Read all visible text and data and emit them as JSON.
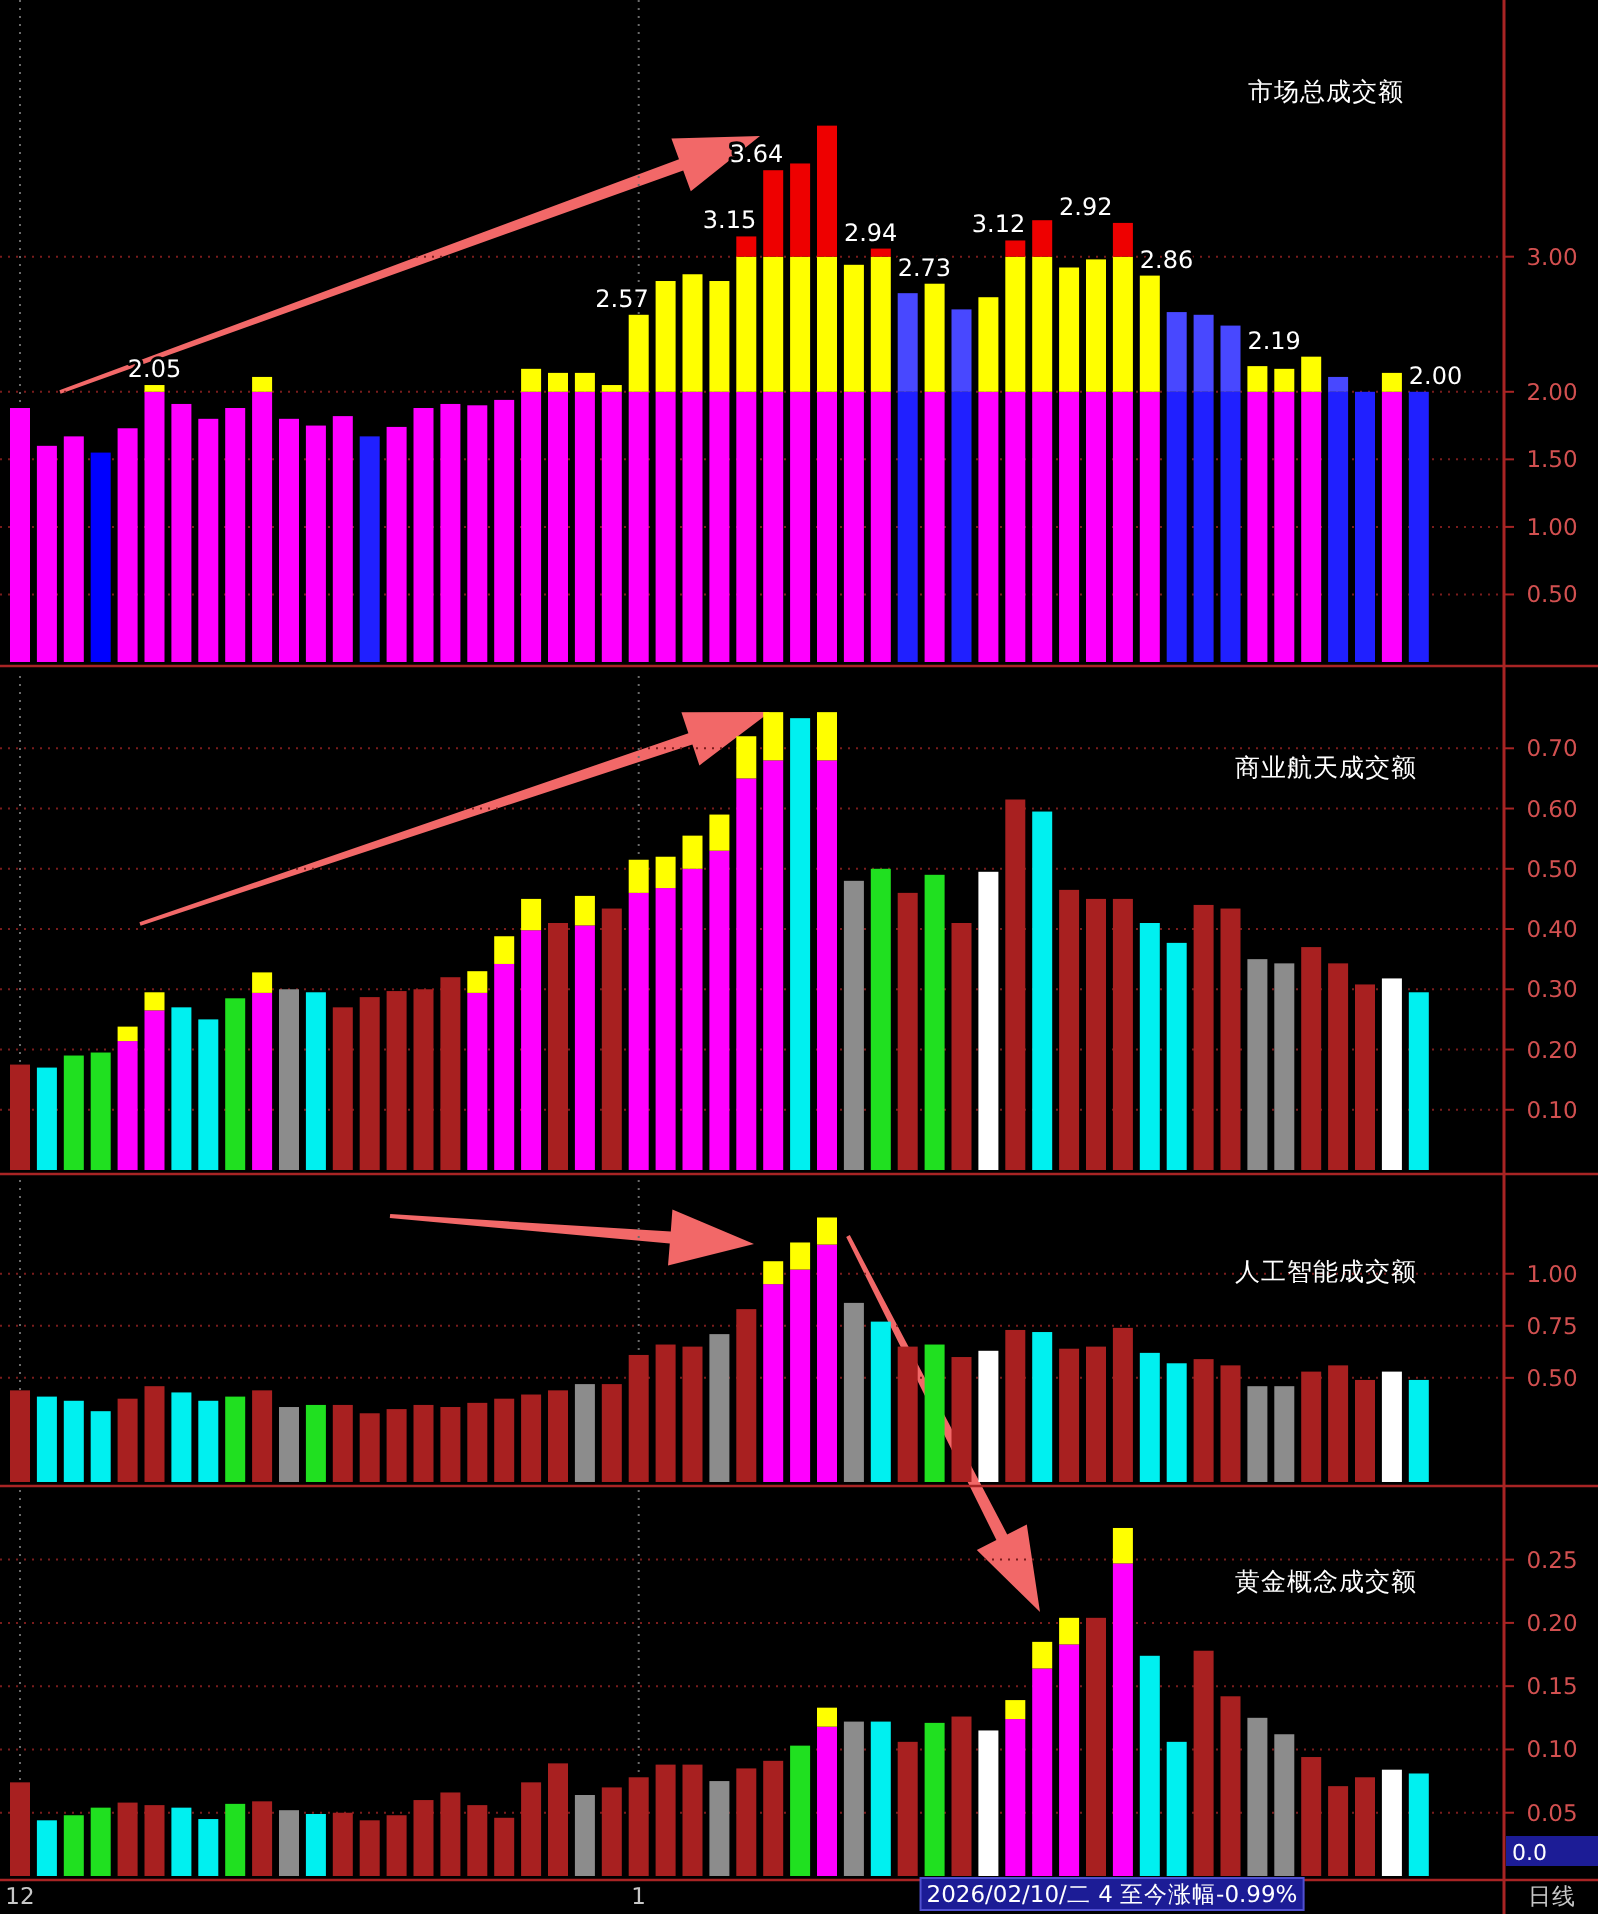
{
  "chart_data": [
    {
      "type": "bar",
      "title": "市场总成交额",
      "stacked": true,
      "grid": true,
      "tick_labels": "y",
      "categories": [
        "12",
        null,
        null,
        null,
        null,
        null,
        null,
        null,
        null,
        null,
        null,
        null,
        null,
        null,
        null,
        null,
        null,
        null,
        null,
        null,
        null,
        null,
        null,
        "1",
        null,
        null,
        null,
        null,
        null,
        null,
        null,
        null,
        null,
        null,
        null,
        null,
        null,
        null,
        null,
        null,
        null,
        null,
        null,
        null,
        null,
        null,
        null,
        null,
        null,
        null,
        null,
        null,
        null
      ],
      "ylim": [
        0,
        4.9
      ],
      "yticks": [
        {
          "value": 0.5,
          "label": "0.50"
        },
        {
          "value": 1,
          "label": "1.00"
        },
        {
          "value": 1.5,
          "label": "1.50"
        },
        {
          "value": 2,
          "label": "2.00"
        },
        {
          "value": 3,
          "label": "3.00"
        }
      ],
      "series": [
        {
          "colors": [
            "#ff00ff",
            "#ff00ff",
            "#ff00ff",
            "#0000ff",
            "#ff00ff",
            "#ff00ff",
            "#ff00ff",
            "#ff00ff",
            "#ff00ff",
            "#ff00ff",
            "#ff00ff",
            "#ff00ff",
            "#ff00ff",
            "#2020ff",
            "#ff00ff",
            "#ff00ff",
            "#ff00ff",
            "#ff00ff",
            "#ff00ff",
            "#ff00ff",
            "#ff00ff",
            "#ff00ff",
            "#ff00ff",
            "#ff00ff",
            "#ff00ff",
            "#ff00ff",
            "#ff00ff",
            "#ff00ff",
            "#ff00ff",
            "#ff00ff",
            "#ff00ff",
            "#ff00ff",
            "#ff00ff",
            "#2020ff",
            "#ff00ff",
            "#2020ff",
            "#ff00ff",
            "#ff00ff",
            "#ff00ff",
            "#ff00ff",
            "#ff00ff",
            "#ff00ff",
            "#ff00ff",
            "#2020ff",
            "#2020ff",
            "#2020ff",
            "#ff00ff",
            "#ff00ff",
            "#ff00ff",
            "#2020ff",
            "#2020ff",
            "#ff00ff",
            "#2020ff"
          ],
          "values": [
            1.88,
            1.6,
            1.67,
            1.55,
            1.73,
            2,
            1.91,
            1.8,
            1.88,
            2,
            1.8,
            1.75,
            1.82,
            1.67,
            1.74,
            1.88,
            1.91,
            1.9,
            1.94,
            2,
            2,
            2,
            2,
            2,
            2,
            2,
            2,
            2,
            2,
            2,
            2,
            2,
            2,
            2,
            2,
            2,
            2,
            2,
            2,
            2,
            2,
            2,
            2,
            2,
            2,
            2,
            2,
            2,
            2,
            2,
            2,
            2,
            2
          ]
        },
        {
          "colors": [
            null,
            null,
            null,
            null,
            null,
            "#ffff00",
            null,
            null,
            null,
            "#ffff00",
            null,
            null,
            null,
            null,
            null,
            null,
            null,
            null,
            null,
            "#ffff00",
            "#ffff00",
            "#ffff00",
            "#ffff00",
            "#ffff00",
            "#ffff00",
            "#ffff00",
            "#ffff00",
            "#ffff00",
            "#ffff00",
            "#ffff00",
            "#ffff00",
            "#ffff00",
            "#ffff00",
            "#4848ff",
            "#ffff00",
            "#4848ff",
            "#ffff00",
            "#ffff00",
            "#ffff00",
            "#ffff00",
            "#ffff00",
            "#ffff00",
            "#ffff00",
            "#4848ff",
            "#4848ff",
            "#4848ff",
            "#ffff00",
            "#ffff00",
            "#ffff00",
            "#4848ff",
            null,
            "#ffff00",
            null
          ],
          "values": [
            null,
            null,
            null,
            null,
            null,
            0.05,
            null,
            null,
            null,
            0.11,
            null,
            null,
            null,
            null,
            null,
            null,
            null,
            null,
            null,
            0.17,
            0.14,
            0.14,
            0.05,
            0.57,
            0.82,
            0.87,
            0.82,
            1,
            1,
            1,
            1,
            0.94,
            1,
            0.73,
            0.8,
            0.61,
            0.7,
            1,
            1,
            0.92,
            0.98,
            1,
            0.86,
            0.59,
            0.57,
            0.49,
            0.19,
            0.17,
            0.26,
            0.11,
            null,
            0.14,
            null
          ]
        },
        {
          "color": "#ee0000",
          "values": [
            null,
            null,
            null,
            null,
            null,
            null,
            null,
            null,
            null,
            null,
            null,
            null,
            null,
            null,
            null,
            null,
            null,
            null,
            null,
            null,
            null,
            null,
            null,
            null,
            null,
            null,
            null,
            0.15,
            0.64,
            0.69,
            0.97,
            null,
            0.06,
            null,
            null,
            null,
            null,
            0.12,
            0.27,
            null,
            null,
            0.25,
            null,
            null,
            null,
            null,
            null,
            null,
            null,
            null,
            null,
            null,
            null
          ]
        }
      ],
      "totals": [
        null,
        null,
        null,
        null,
        null,
        "2.05",
        null,
        null,
        null,
        null,
        null,
        null,
        null,
        null,
        null,
        null,
        null,
        null,
        null,
        null,
        null,
        null,
        null,
        "2.57",
        null,
        null,
        null,
        "3.15",
        "3.64",
        null,
        null,
        "2.94",
        null,
        "2.73",
        null,
        null,
        null,
        "3.12",
        null,
        "2.92",
        null,
        null,
        "2.86",
        null,
        null,
        null,
        "2.19",
        null,
        null,
        null,
        null,
        null,
        "2.00"
      ]
    },
    {
      "type": "bar",
      "title": "商业航天成交额",
      "stacked": true,
      "grid": true,
      "tick_labels": "y",
      "categories": [
        "12",
        null,
        null,
        null,
        null,
        null,
        null,
        null,
        null,
        null,
        null,
        null,
        null,
        null,
        null,
        null,
        null,
        null,
        null,
        null,
        null,
        null,
        null,
        "1",
        null,
        null,
        null,
        null,
        null,
        null,
        null,
        null,
        null,
        null,
        null,
        null,
        null,
        null,
        null,
        null,
        null,
        null,
        null,
        null,
        null,
        null,
        null,
        null,
        null,
        null,
        null,
        null,
        null
      ],
      "ylim": [
        0,
        0.82
      ],
      "yticks": [
        {
          "value": 0.1,
          "label": "0.10"
        },
        {
          "value": 0.2,
          "label": "0.20"
        },
        {
          "value": 0.3,
          "label": "0.30"
        },
        {
          "value": 0.4,
          "label": "0.40"
        },
        {
          "value": 0.5,
          "label": "0.50"
        },
        {
          "value": 0.6,
          "label": "0.60"
        },
        {
          "value": 0.7,
          "label": "0.70"
        }
      ],
      "series": [
        {
          "colors": [
            "#a82020",
            "#00f0f0",
            "#20e020",
            "#20e020",
            "#ff00ff",
            "#ff00ff",
            "#00f0f0",
            "#00f0f0",
            "#20e020",
            "#ff00ff",
            "#8c8c8c",
            "#00f0f0",
            "#a82020",
            "#a82020",
            "#a82020",
            "#a82020",
            "#a82020",
            "#ff00ff",
            "#ff00ff",
            "#ff00ff",
            "#a82020",
            "#ff00ff",
            "#a82020",
            "#ff00ff",
            "#ff00ff",
            "#ff00ff",
            "#ff00ff",
            "#ff00ff",
            "#ff00ff",
            "#00f0f0",
            "#ff00ff",
            "#8c8c8c",
            "#20e020",
            "#a82020",
            "#20e020",
            "#a82020",
            "#ffffff",
            "#a82020",
            "#00f0f0",
            "#a82020",
            "#a82020",
            "#a82020",
            "#00f0f0",
            "#00f0f0",
            "#a82020",
            "#a82020",
            "#8c8c8c",
            "#8c8c8c",
            "#a82020",
            "#a82020",
            "#a82020",
            "#ffffff",
            "#00f0f0"
          ],
          "values": [
            0.175,
            0.17,
            0.19,
            0.195,
            0.214,
            0.265,
            0.27,
            0.25,
            0.285,
            0.294,
            0.3,
            0.295,
            0.27,
            0.287,
            0.297,
            0.3,
            0.32,
            0.294,
            0.342,
            0.398,
            0.41,
            0.406,
            0.434,
            0.46,
            0.468,
            0.5,
            0.53,
            0.65,
            0.68,
            0.75,
            0.68,
            0.48,
            0.5,
            0.46,
            0.49,
            0.41,
            0.495,
            0.615,
            0.595,
            0.465,
            0.45,
            0.45,
            0.41,
            0.377,
            0.44,
            0.434,
            0.35,
            0.343,
            0.37,
            0.343,
            0.308,
            0.318,
            0.295
          ]
        },
        {
          "color": "#ffff00",
          "values": [
            null,
            null,
            null,
            null,
            0.024,
            0.03,
            null,
            null,
            null,
            0.034,
            null,
            null,
            null,
            null,
            null,
            null,
            null,
            0.036,
            0.046,
            0.052,
            null,
            0.049,
            null,
            0.055,
            0.052,
            0.055,
            0.06,
            0.07,
            0.08,
            null,
            0.08,
            null,
            null,
            null,
            null,
            null,
            null,
            null,
            null,
            null,
            null,
            null,
            null,
            null,
            null,
            null,
            null,
            null,
            null,
            null,
            null,
            null,
            null
          ]
        }
      ]
    },
    {
      "type": "bar",
      "title": "人工智能成交额",
      "stacked": true,
      "grid": true,
      "tick_labels": "y",
      "categories": [
        "12",
        null,
        null,
        null,
        null,
        null,
        null,
        null,
        null,
        null,
        null,
        null,
        null,
        null,
        null,
        null,
        null,
        null,
        null,
        null,
        null,
        null,
        null,
        "1",
        null,
        null,
        null,
        null,
        null,
        null,
        null,
        null,
        null,
        null,
        null,
        null,
        null,
        null,
        null,
        null,
        null,
        null,
        null,
        null,
        null,
        null,
        null,
        null,
        null,
        null,
        null,
        null,
        null
      ],
      "ylim": [
        0,
        1.45
      ],
      "yticks": [
        {
          "value": 0.5,
          "label": "0.50"
        },
        {
          "value": 0.75,
          "label": "0.75"
        },
        {
          "value": 1,
          "label": "1.00"
        }
      ],
      "series": [
        {
          "colors": [
            "#a82020",
            "#00f0f0",
            "#00f0f0",
            "#00f0f0",
            "#a82020",
            "#a82020",
            "#00f0f0",
            "#00f0f0",
            "#20e020",
            "#a82020",
            "#8c8c8c",
            "#20e020",
            "#a82020",
            "#a82020",
            "#a82020",
            "#a82020",
            "#a82020",
            "#a82020",
            "#a82020",
            "#a82020",
            "#a82020",
            "#8c8c8c",
            "#a82020",
            "#a82020",
            "#a82020",
            "#a82020",
            "#8c8c8c",
            "#a82020",
            "#ff00ff",
            "#ff00ff",
            "#ff00ff",
            "#8c8c8c",
            "#00f0f0",
            "#a82020",
            "#20e020",
            "#a82020",
            "#ffffff",
            "#a82020",
            "#00f0f0",
            "#a82020",
            "#a82020",
            "#a82020",
            "#00f0f0",
            "#00f0f0",
            "#a82020",
            "#a82020",
            "#8c8c8c",
            "#8c8c8c",
            "#a82020",
            "#a82020",
            "#a82020",
            "#ffffff",
            "#00f0f0"
          ],
          "values": [
            0.44,
            0.41,
            0.39,
            0.34,
            0.4,
            0.46,
            0.43,
            0.39,
            0.41,
            0.44,
            0.36,
            0.37,
            0.37,
            0.33,
            0.35,
            0.37,
            0.36,
            0.38,
            0.4,
            0.42,
            0.44,
            0.47,
            0.47,
            0.61,
            0.66,
            0.65,
            0.71,
            0.83,
            0.95,
            1.02,
            1.14,
            0.86,
            0.77,
            0.65,
            0.66,
            0.6,
            0.63,
            0.73,
            0.72,
            0.64,
            0.65,
            0.74,
            0.62,
            0.57,
            0.59,
            0.56,
            0.46,
            0.46,
            0.53,
            0.56,
            0.49,
            0.53,
            0.49
          ]
        },
        {
          "color": "#ffff00",
          "values": [
            null,
            null,
            null,
            null,
            null,
            null,
            null,
            null,
            null,
            null,
            null,
            null,
            null,
            null,
            null,
            null,
            null,
            null,
            null,
            null,
            null,
            null,
            null,
            null,
            null,
            null,
            null,
            null,
            0.11,
            0.13,
            0.13,
            null,
            null,
            null,
            null,
            null,
            null,
            null,
            null,
            null,
            null,
            null,
            null,
            null,
            null,
            null,
            null,
            null,
            null,
            null,
            null,
            null,
            null
          ]
        }
      ]
    },
    {
      "type": "bar",
      "title": "黄金概念成交额",
      "stacked": true,
      "grid": true,
      "categories": [
        "12",
        null,
        null,
        null,
        null,
        null,
        null,
        null,
        null,
        null,
        null,
        null,
        null,
        null,
        null,
        null,
        null,
        null,
        null,
        null,
        null,
        null,
        null,
        "1",
        null,
        null,
        null,
        null,
        null,
        null,
        null,
        null,
        null,
        null,
        null,
        null,
        null,
        null,
        null,
        null,
        null,
        null,
        null,
        null,
        null,
        null,
        null,
        null,
        null,
        null,
        null,
        null,
        null
      ],
      "ylim": [
        0,
        0.305
      ],
      "yticks": [
        {
          "value": 0.05,
          "label": "0.05"
        },
        {
          "value": 0.1,
          "label": "0.10"
        },
        {
          "value": 0.15,
          "label": "0.15"
        },
        {
          "value": 0.2,
          "label": "0.20"
        },
        {
          "value": 0.25,
          "label": "0.25"
        }
      ],
      "series": [
        {
          "colors": [
            "#a82020",
            "#00f0f0",
            "#20e020",
            "#20e020",
            "#a82020",
            "#a82020",
            "#00f0f0",
            "#00f0f0",
            "#20e020",
            "#a82020",
            "#8c8c8c",
            "#00f0f0",
            "#a82020",
            "#a82020",
            "#a82020",
            "#a82020",
            "#a82020",
            "#a82020",
            "#a82020",
            "#a82020",
            "#a82020",
            "#8c8c8c",
            "#a82020",
            "#a82020",
            "#a82020",
            "#a82020",
            "#8c8c8c",
            "#a82020",
            "#a82020",
            "#20e020",
            "#ff00ff",
            "#8c8c8c",
            "#00f0f0",
            "#a82020",
            "#20e020",
            "#a82020",
            "#ffffff",
            "#ff00ff",
            "#ff00ff",
            "#ff00ff",
            "#a82020",
            "#ff00ff",
            "#00f0f0",
            "#00f0f0",
            "#a82020",
            "#a82020",
            "#8c8c8c",
            "#8c8c8c",
            "#a82020",
            "#a82020",
            "#a82020",
            "#ffffff",
            "#00f0f0"
          ],
          "values": [
            0.074,
            0.044,
            0.048,
            0.054,
            0.058,
            0.056,
            0.054,
            0.045,
            0.057,
            0.059,
            0.052,
            0.049,
            0.05,
            0.044,
            0.048,
            0.06,
            0.066,
            0.056,
            0.046,
            0.074,
            0.089,
            0.064,
            0.07,
            0.078,
            0.088,
            0.088,
            0.075,
            0.085,
            0.091,
            0.103,
            0.118,
            0.122,
            0.122,
            0.106,
            0.121,
            0.126,
            0.115,
            0.124,
            0.164,
            0.183,
            0.204,
            0.247,
            0.174,
            0.106,
            0.178,
            0.142,
            0.125,
            0.112,
            0.094,
            0.071,
            0.078,
            0.084,
            0.081
          ]
        },
        {
          "color": "#ffff00",
          "values": [
            null,
            null,
            null,
            null,
            null,
            null,
            null,
            null,
            null,
            null,
            null,
            null,
            null,
            null,
            null,
            null,
            null,
            null,
            null,
            null,
            null,
            null,
            null,
            null,
            null,
            null,
            null,
            null,
            null,
            null,
            0.015,
            null,
            null,
            null,
            null,
            null,
            null,
            0.015,
            0.021,
            0.021,
            null,
            0.028,
            null,
            null,
            null,
            null,
            null,
            null,
            null,
            null,
            null,
            null,
            null
          ]
        }
      ],
      "annotations": [
        "2026/02/10/二 4 至今涨幅-0.99%",
        "0.0",
        "日线"
      ]
    }
  ]
}
